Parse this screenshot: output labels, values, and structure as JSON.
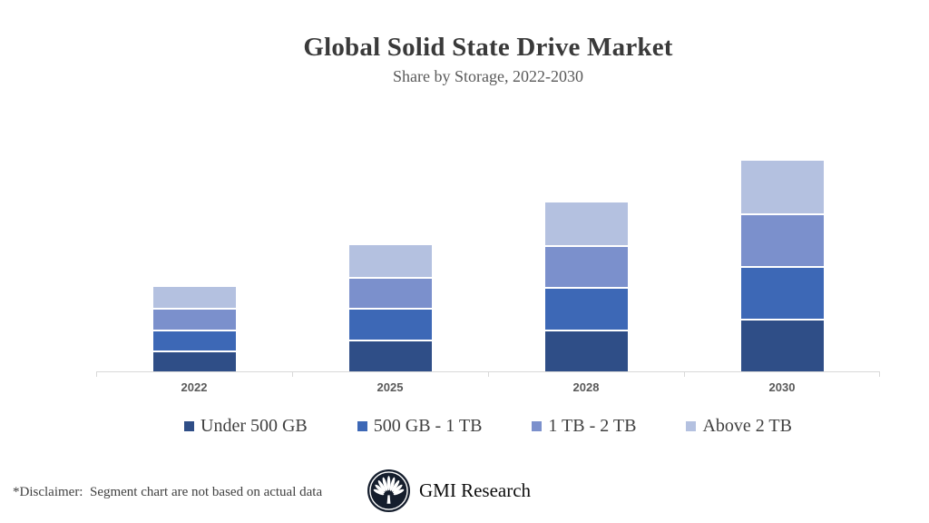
{
  "header": {
    "title": "Global Solid State Drive Market",
    "subtitle": "Share by Storage, 2022-2030"
  },
  "chart_data": {
    "type": "bar",
    "stacked": true,
    "title": "Global Solid State Drive Market",
    "subtitle": "Share by Storage, 2022-2030",
    "categories": [
      "2022",
      "2025",
      "2028",
      "2030"
    ],
    "series": [
      {
        "name": "Under 500 GB",
        "color": "#2f4e87",
        "values": [
          10,
          15,
          20,
          25
        ]
      },
      {
        "name": "500 GB - 1 TB",
        "color": "#3d68b6",
        "values": [
          10,
          15,
          20,
          25
        ]
      },
      {
        "name": "1 TB - 2 TB",
        "color": "#7b90cc",
        "values": [
          10,
          15,
          20,
          25
        ]
      },
      {
        "name": "Above 2 TB",
        "color": "#b4c1e0",
        "values": [
          10,
          15,
          20,
          25
        ]
      }
    ],
    "totals": [
      40,
      60,
      80,
      100
    ],
    "xlabel": "",
    "ylabel": "",
    "ylim": [
      0,
      100
    ],
    "y_axis_visible": false,
    "grid": false,
    "legend_position": "bottom",
    "axis_color": "#d9d9d9",
    "segment_gap_color": "#ffffff"
  },
  "footer": {
    "disclaimer": "*Disclaimer:  Segment chart are not based on actual data",
    "brand_name": "GMI Research",
    "logo_color": "#151e2d"
  }
}
